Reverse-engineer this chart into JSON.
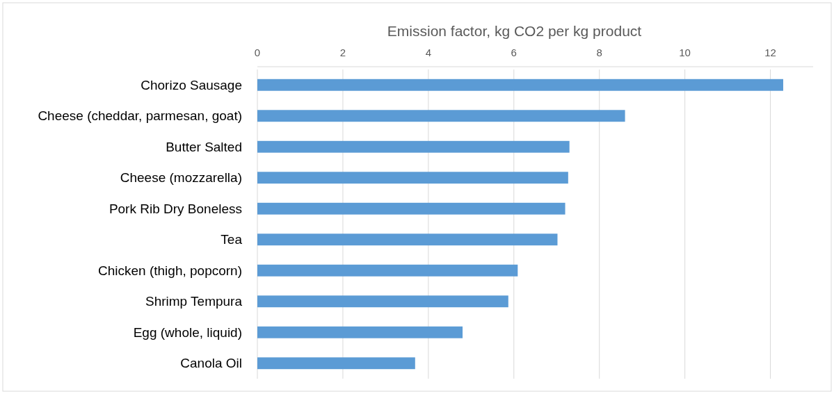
{
  "chart_data": {
    "type": "bar",
    "orientation": "horizontal",
    "xlabel": "Emission factor, kg CO2 per kg product",
    "categories": [
      "Chorizo Sausage",
      "Cheese (cheddar, parmesan, goat)",
      "Butter Salted",
      "Cheese (mozzarella)",
      "Pork Rib Dry Boneless",
      "Tea",
      "Chicken (thigh, popcorn)",
      "Shrimp Tempura",
      "Egg (whole, liquid)",
      "Canola Oil"
    ],
    "values": [
      12.3,
      8.6,
      7.3,
      7.27,
      7.2,
      7.02,
      6.09,
      5.87,
      4.8,
      3.69
    ],
    "color": "#5b9bd5",
    "xlim": [
      0,
      13
    ],
    "xticks": [
      0,
      2,
      4,
      6,
      8,
      10,
      12
    ],
    "grid": "x"
  }
}
